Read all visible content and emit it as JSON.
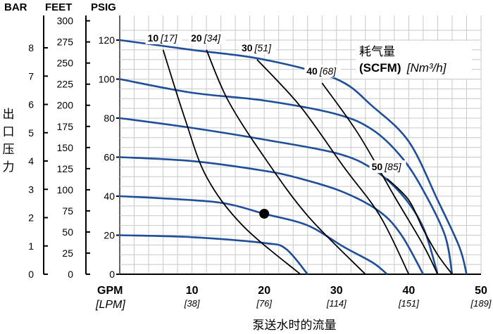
{
  "chart_data": {
    "type": "line",
    "left_axes": [
      {
        "name": "BAR",
        "ticks": [
          0,
          1,
          2,
          3,
          4,
          5,
          6,
          7,
          8
        ]
      },
      {
        "name": "FEET",
        "ticks": [
          0,
          25,
          50,
          75,
          100,
          125,
          150,
          175,
          200,
          225,
          250,
          275,
          300
        ]
      },
      {
        "name": "PSIG",
        "ticks": [
          0,
          20,
          40,
          60,
          80,
          100,
          120
        ]
      }
    ],
    "ylabel": "出口压力",
    "ylim": [
      0,
      130
    ],
    "xlabel": "泵送水时的流量",
    "x_unit": "GPM",
    "x_unit_alt": "[LPM]",
    "xlim": [
      0,
      50
    ],
    "x_ticks": [
      {
        "gpm": "10",
        "lpm": "[38]"
      },
      {
        "gpm": "20",
        "lpm": "[76]"
      },
      {
        "gpm": "30",
        "lpm": "[114]"
      },
      {
        "gpm": "40",
        "lpm": "[151]"
      },
      {
        "gpm": "50",
        "lpm": "[189]"
      }
    ],
    "grid": true,
    "air_title": "耗气量",
    "air_unit_bold": "(SCFM)",
    "air_unit_italic": "[Nm³/h]",
    "pressure_curves": [
      {
        "points": [
          [
            0,
            20
          ],
          [
            10,
            19
          ],
          [
            20,
            16
          ],
          [
            23,
            13
          ],
          [
            26,
            0
          ]
        ]
      },
      {
        "points": [
          [
            0,
            40
          ],
          [
            10,
            38
          ],
          [
            15,
            36
          ],
          [
            20,
            31
          ],
          [
            26,
            25
          ],
          [
            31,
            14
          ],
          [
            35,
            6
          ],
          [
            37,
            0
          ]
        ]
      },
      {
        "points": [
          [
            0,
            60
          ],
          [
            10,
            58
          ],
          [
            20,
            53
          ],
          [
            25,
            49
          ],
          [
            31,
            42
          ],
          [
            36,
            32
          ],
          [
            39,
            20
          ],
          [
            42,
            0
          ]
        ]
      },
      {
        "points": [
          [
            0,
            80
          ],
          [
            10,
            75
          ],
          [
            20,
            69
          ],
          [
            30,
            62
          ],
          [
            35,
            54
          ],
          [
            39,
            41
          ],
          [
            42,
            24
          ],
          [
            44,
            0
          ]
        ]
      },
      {
        "points": [
          [
            0,
            100
          ],
          [
            10,
            93
          ],
          [
            20,
            89
          ],
          [
            30,
            82
          ],
          [
            35,
            74
          ],
          [
            39,
            60
          ],
          [
            42,
            43
          ],
          [
            45,
            20
          ],
          [
            46,
            0
          ]
        ]
      },
      {
        "points": [
          [
            0,
            120
          ],
          [
            10,
            115
          ],
          [
            20,
            110
          ],
          [
            30,
            100
          ],
          [
            35,
            86
          ],
          [
            40,
            68
          ],
          [
            44,
            38
          ],
          [
            47,
            14
          ],
          [
            48,
            0
          ]
        ]
      }
    ],
    "air_curves": [
      {
        "label": "10",
        "label_alt": "[17]",
        "points": [
          [
            6,
            115
          ],
          [
            9,
            80
          ],
          [
            12,
            50
          ],
          [
            17,
            25
          ],
          [
            25,
            0
          ]
        ]
      },
      {
        "label": "20",
        "label_alt": "[34]",
        "points": [
          [
            12,
            115
          ],
          [
            15,
            89
          ],
          [
            20,
            60
          ],
          [
            26,
            30
          ],
          [
            34,
            0
          ]
        ]
      },
      {
        "label": "30",
        "label_alt": "[51]",
        "points": [
          [
            19,
            110
          ],
          [
            25,
            86
          ],
          [
            31,
            55
          ],
          [
            36,
            30
          ],
          [
            40,
            0
          ]
        ]
      },
      {
        "label": "40",
        "label_alt": "[68]",
        "points": [
          [
            28,
            98
          ],
          [
            33,
            72
          ],
          [
            38,
            40
          ],
          [
            42,
            15
          ],
          [
            44,
            0
          ]
        ]
      },
      {
        "label": "50",
        "label_alt": "[85]",
        "points": [
          [
            37,
            49
          ],
          [
            40,
            38
          ],
          [
            42,
            23
          ],
          [
            44,
            10
          ],
          [
            46,
            0
          ]
        ]
      }
    ],
    "marker": {
      "x": 20,
      "y": 31
    }
  }
}
